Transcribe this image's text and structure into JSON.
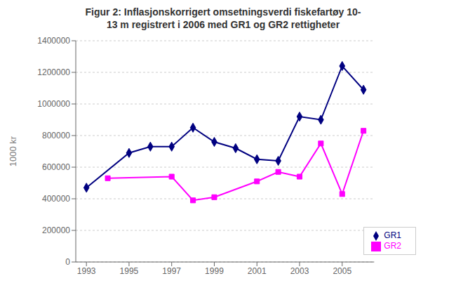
{
  "chart_data": {
    "type": "line",
    "title": "Figur 2: Inflasjonskorrigert omsetningsverdi fiskefartøy 10-\n13 m registrert i 2006 med GR1 og GR2 rettigheter",
    "y_label": "1000 kr",
    "series": [
      {
        "name": "GR1",
        "color": "#000080",
        "marker": "diamond",
        "x": [
          1993,
          1995,
          1996,
          1997,
          1998,
          1999,
          2000,
          2001,
          2002,
          2003,
          2004,
          2005,
          2006
        ],
        "values": [
          470000,
          690000,
          730000,
          730000,
          850000,
          760000,
          720000,
          650000,
          640000,
          920000,
          900000,
          1240000,
          1090000
        ]
      },
      {
        "name": "GR2",
        "color": "#FF00FF",
        "marker": "square",
        "x": [
          1994,
          1997,
          1998,
          1999,
          2001,
          2002,
          2003,
          2004,
          2005,
          2006
        ],
        "values": [
          530000,
          540000,
          390000,
          410000,
          510000,
          570000,
          540000,
          750000,
          430000,
          830000
        ]
      }
    ],
    "xlim": [
      1992.5,
      2006.5
    ],
    "xticks": [
      1993,
      1995,
      1997,
      1999,
      2001,
      2003,
      2005
    ],
    "ylim": [
      0,
      1400000
    ],
    "yticks": [
      0,
      200000,
      400000,
      600000,
      800000,
      1000000,
      1200000,
      1400000
    ],
    "grid": true,
    "legend": "lower right"
  }
}
